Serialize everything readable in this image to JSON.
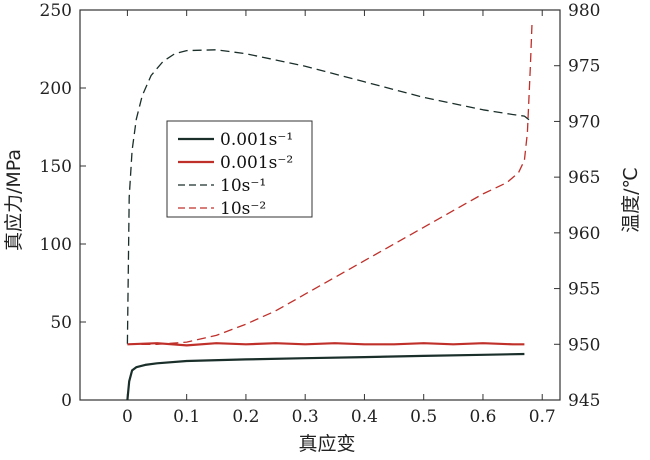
{
  "chart_data": {
    "type": "line",
    "xlabel": "真应变",
    "ylabel_left": "真应力/MPa",
    "ylabel_right": "温度/℃",
    "xlim": [
      -0.08,
      0.73
    ],
    "ylim_left": [
      0,
      250
    ],
    "ylim_right": [
      945,
      980
    ],
    "x_ticks": [
      "0",
      "0.1",
      "0.2",
      "0.3",
      "0.4",
      "0.5",
      "0.6",
      "0.7"
    ],
    "y_left_ticks": [
      "0",
      "50",
      "100",
      "150",
      "200",
      "250"
    ],
    "y_right_ticks": [
      "945",
      "950",
      "955",
      "960",
      "965",
      "970",
      "975",
      "980"
    ],
    "grid": false,
    "legend_position": "center-left",
    "series": [
      {
        "name": "0.001s⁻¹",
        "axis": "left",
        "color": "#1a2e2a",
        "style": "solid",
        "x": [
          0,
          0.003,
          0.008,
          0.015,
          0.03,
          0.05,
          0.1,
          0.2,
          0.3,
          0.4,
          0.5,
          0.6,
          0.67
        ],
        "y": [
          0,
          12,
          19,
          21,
          22.5,
          23.5,
          25,
          26,
          26.8,
          27.5,
          28.3,
          29,
          29.5
        ]
      },
      {
        "name": "0.001s⁻²",
        "axis": "right",
        "color": "#c0302a",
        "style": "solid",
        "x": [
          0,
          0.05,
          0.1,
          0.15,
          0.2,
          0.25,
          0.3,
          0.35,
          0.4,
          0.45,
          0.5,
          0.55,
          0.6,
          0.65,
          0.67
        ],
        "y": [
          950,
          950.1,
          949.9,
          950.1,
          950,
          950.1,
          950,
          950.1,
          950,
          950,
          950.1,
          950,
          950.1,
          950,
          950
        ]
      },
      {
        "name": "10s⁻¹",
        "axis": "left",
        "color": "#1a2e2a",
        "style": "dashed",
        "x": [
          0,
          0.003,
          0.008,
          0.015,
          0.025,
          0.04,
          0.06,
          0.08,
          0.1,
          0.15,
          0.2,
          0.3,
          0.4,
          0.5,
          0.6,
          0.65,
          0.67,
          0.68
        ],
        "y": [
          36,
          130,
          160,
          180,
          195,
          208,
          217,
          222,
          224,
          224.5,
          222,
          214,
          204,
          194,
          186,
          183,
          182,
          179
        ]
      },
      {
        "name": "10s⁻²",
        "axis": "right",
        "color": "#c0302a",
        "style": "dashed",
        "x": [
          0,
          0.05,
          0.1,
          0.15,
          0.2,
          0.25,
          0.3,
          0.35,
          0.4,
          0.45,
          0.5,
          0.55,
          0.6,
          0.64,
          0.66,
          0.67,
          0.675,
          0.68,
          0.683
        ],
        "y": [
          950,
          950,
          950.2,
          950.8,
          951.8,
          953,
          954.5,
          956,
          957.5,
          959,
          960.5,
          962,
          963.5,
          964.5,
          965.4,
          966.5,
          969,
          975,
          979
        ]
      }
    ]
  },
  "style": {
    "color_black_series": "#1a2e2a",
    "color_red_series": "#c0302a"
  }
}
